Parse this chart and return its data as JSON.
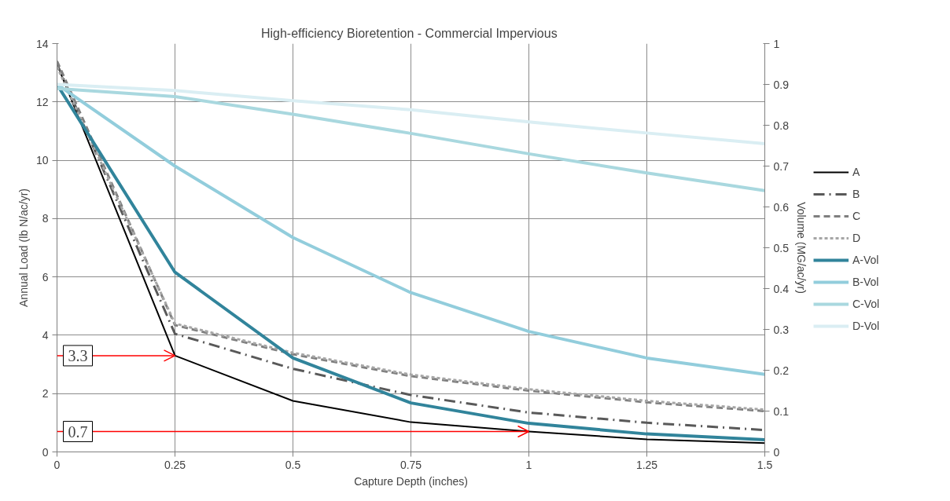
{
  "chart_data": {
    "type": "line",
    "title": "High-efficiency Bioretention -  Commercial Impervious",
    "xlabel": "Capture Depth (inches)",
    "ylabel": "Annual Load (lb N/ac/yr)",
    "y2label": "Volume (MG/ac/yr)",
    "x": [
      0,
      0.25,
      0.5,
      0.75,
      1,
      1.25,
      1.5
    ],
    "series": [
      {
        "name": "A",
        "color": "#000000",
        "line_style": "solid",
        "values": [
          13.3,
          3.3,
          1.75,
          1.02,
          0.7,
          0.43,
          0.3
        ]
      },
      {
        "name": "B",
        "color": "#595959",
        "line_style": "dashdot",
        "values": [
          13.3,
          4.05,
          2.85,
          1.95,
          1.35,
          1.0,
          0.75
        ]
      },
      {
        "name": "C",
        "color": "#7f7f7f",
        "line_style": "dashed",
        "values": [
          13.4,
          4.35,
          3.35,
          2.6,
          2.1,
          1.7,
          1.4
        ]
      },
      {
        "name": "D",
        "color": "#a6a6a6",
        "line_style": "dotted",
        "values": [
          13.2,
          4.4,
          3.4,
          2.65,
          2.15,
          1.75,
          1.45
        ]
      },
      {
        "name": "A-Vol",
        "color": "#31849b",
        "axis": "y2",
        "line_style": "solid",
        "values": [
          0.9,
          0.44,
          0.23,
          0.12,
          0.07,
          0.044,
          0.03
        ]
      },
      {
        "name": "B-Vol",
        "color": "#92cddc",
        "axis": "y2",
        "line_style": "solid",
        "values": [
          0.9,
          0.7,
          0.525,
          0.39,
          0.295,
          0.23,
          0.19
        ]
      },
      {
        "name": "C-Vol",
        "color": "#a9d8df",
        "axis": "y2",
        "line_style": "solid",
        "values": [
          0.89,
          0.87,
          0.827,
          0.78,
          0.73,
          0.683,
          0.64
        ]
      },
      {
        "name": "D-Vol",
        "color": "#daeef3",
        "axis": "y2",
        "line_style": "solid",
        "values": [
          0.9,
          0.885,
          0.86,
          0.838,
          0.808,
          0.781,
          0.755
        ]
      }
    ],
    "xlim": [
      0,
      1.5
    ],
    "xticks": [
      0,
      0.25,
      0.5,
      0.75,
      1,
      1.25,
      1.5
    ],
    "ylim": [
      0,
      14
    ],
    "yticks": [
      0,
      2,
      4,
      6,
      8,
      10,
      12,
      14
    ],
    "y2lim": [
      0,
      1
    ],
    "y2ticks": [
      0,
      0.1,
      0.2,
      0.3,
      0.4,
      0.5,
      0.6,
      0.7,
      0.8,
      0.9,
      1
    ],
    "annotations": [
      {
        "text": "3.3",
        "x": 0.25,
        "y": 3.3
      },
      {
        "text": "0.7",
        "x": 1,
        "y": 0.7
      }
    ],
    "grid": true,
    "legend": "right",
    "marker": "none"
  }
}
